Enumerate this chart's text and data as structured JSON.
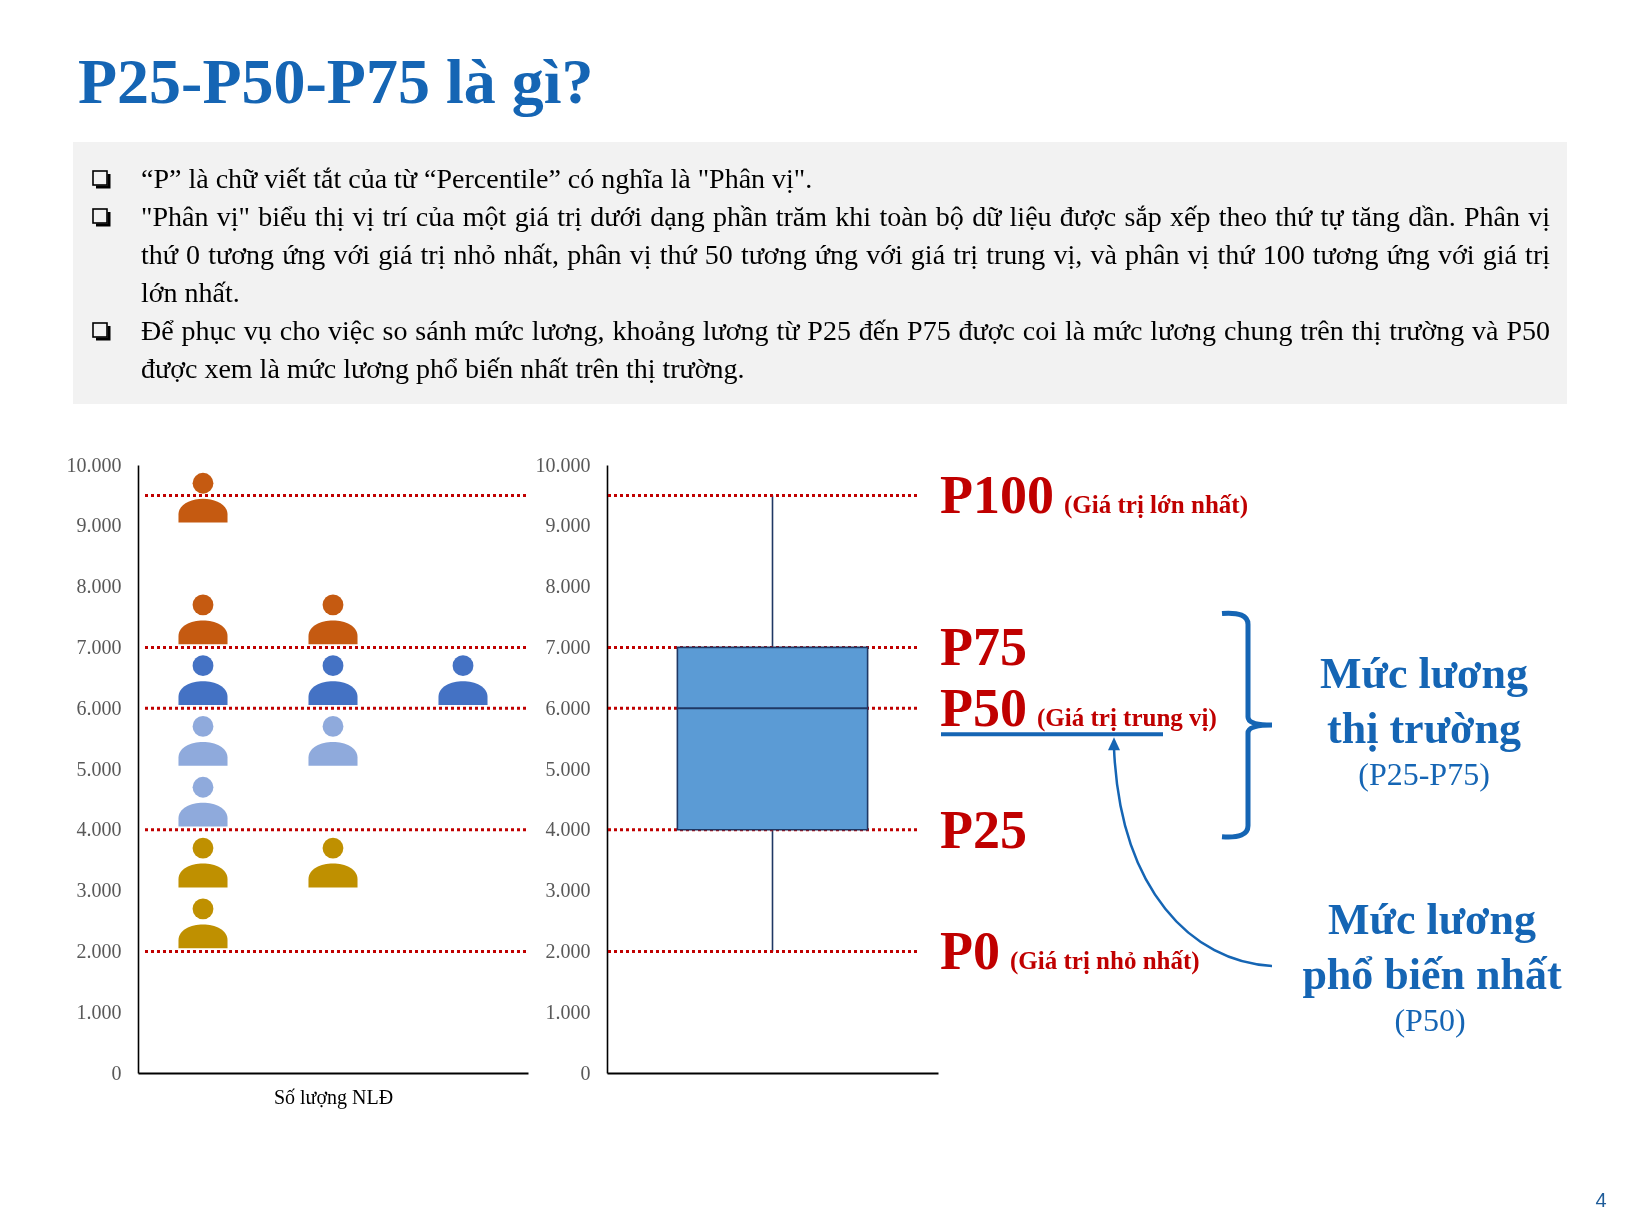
{
  "chart_data": [
    {
      "type": "other",
      "title": "P25-P50-P75 là gì?",
      "annotations": [
        "“P” là chữ viết tắt của từ “Percentile” có nghĩa là \"Phân vị\".",
        "\"Phân vị\" biểu thị vị trí của một giá trị dưới dạng phần trăm khi toàn bộ dữ liệu được sắp xếp theo thứ tự tăng dần. Phân vị thứ 0 tương ứng với giá trị nhỏ nhất, phân vị thứ 50 tương ứng với giá trị trung vị, và phân vị thứ 100 tương ứng với giá trị lớn nhất.",
        "Để phục vụ cho việc so sánh mức lương, khoảng lương từ P25 đến P75 được coi là mức lương chung trên thị trường và P50 được xem là mức lương phổ biến nhất trên thị trường."
      ]
    },
    {
      "type": "scatter",
      "xlabel": "Số lượng NLĐ",
      "categories": [
        null,
        null,
        null
      ],
      "marker": "circle",
      "ylim": [
        0,
        10000
      ],
      "yticks": [
        0,
        {
          "value": 1000,
          "label": "1.000"
        },
        {
          "value": 2000,
          "label": "2.000"
        },
        {
          "value": 3000,
          "label": "3.000"
        },
        {
          "value": 4000,
          "label": "4.000"
        },
        {
          "value": 5000,
          "label": "5.000"
        },
        {
          "value": 6000,
          "label": "6.000"
        },
        {
          "value": 7000,
          "label": "7.000"
        },
        {
          "value": 8000,
          "label": "8.000"
        },
        {
          "value": 9000,
          "label": "9.000"
        },
        {
          "value": 10000,
          "label": "10.000"
        }
      ],
      "tick_labels": "y",
      "series": [
        {
          "color": "#c55a11",
          "values": [
            9700,
            7700,
            null
          ]
        },
        {
          "color": "#c55a11",
          "values": [
            7700,
            null,
            null
          ]
        },
        {
          "color": "#4472c4",
          "values": [
            6700,
            6700,
            6700
          ]
        },
        {
          "color": "#8faadc",
          "values": [
            5700,
            5700,
            null
          ]
        },
        {
          "color": "#8faadc",
          "values": [
            4700,
            null,
            null
          ]
        },
        {
          "color": "#bf9000",
          "values": [
            3700,
            3700,
            null
          ]
        },
        {
          "color": "#bf9000",
          "values": [
            2700,
            null,
            null
          ]
        }
      ],
      "ref_lines": [
        {
          "axis": "y",
          "value": 9500,
          "color": "#c00000",
          "line_style": "dotted"
        },
        {
          "axis": "y",
          "value": 7000,
          "color": "#c00000",
          "line_style": "dotted"
        },
        {
          "axis": "y",
          "value": 6000,
          "color": "#c00000",
          "line_style": "dotted"
        },
        {
          "axis": "y",
          "value": 4000,
          "color": "#c00000",
          "line_style": "dotted"
        },
        {
          "axis": "y",
          "value": 2000,
          "color": "#c00000",
          "line_style": "dotted"
        }
      ]
    },
    {
      "type": "box",
      "categories": [
        null
      ],
      "color": "#5b9bd5",
      "boxes": [
        {
          "low": 2000,
          "q1": 4000,
          "median": 6000,
          "q3": 7000,
          "high": 9500
        }
      ],
      "ylim": [
        0,
        10000
      ],
      "yticks": [
        0,
        {
          "value": 1000,
          "label": "1.000"
        },
        {
          "value": 2000,
          "label": "2.000"
        },
        {
          "value": 3000,
          "label": "3.000"
        },
        {
          "value": 4000,
          "label": "4.000"
        },
        {
          "value": 5000,
          "label": "5.000"
        },
        {
          "value": 6000,
          "label": "6.000"
        },
        {
          "value": 7000,
          "label": "7.000"
        },
        {
          "value": 8000,
          "label": "8.000"
        },
        {
          "value": 9000,
          "label": "9.000"
        },
        {
          "value": 10000,
          "label": "10.000"
        }
      ],
      "tick_labels": "y",
      "ref_lines": [
        {
          "axis": "y",
          "value": 9500,
          "label": "P100 (Giá trị lớn nhất)",
          "color": "#c00000",
          "line_style": "dotted"
        },
        {
          "axis": "y",
          "value": 7000,
          "label": "P75",
          "color": "#c00000",
          "line_style": "dotted"
        },
        {
          "axis": "y",
          "value": 6000,
          "label": "P50 (Giá trị trung vị)",
          "color": "#c00000",
          "line_style": "dotted"
        },
        {
          "axis": "y",
          "value": 4000,
          "label": "P25",
          "color": "#c00000",
          "line_style": "dotted"
        },
        {
          "axis": "y",
          "value": 2000,
          "label": "P0 (Giá trị nhỏ nhất)",
          "color": "#c00000",
          "line_style": "dotted"
        }
      ],
      "annotations": [
        "Mức lương thị trường",
        "(P25-P75)",
        "Mức lương phổ biến nhất",
        "(P50)",
        "4"
      ]
    }
  ]
}
